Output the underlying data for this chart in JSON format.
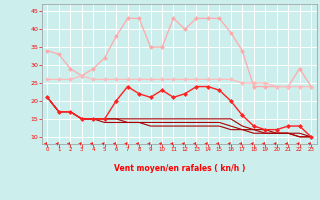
{
  "x": [
    0,
    1,
    2,
    3,
    4,
    5,
    6,
    7,
    8,
    9,
    10,
    11,
    12,
    13,
    14,
    15,
    16,
    17,
    18,
    19,
    20,
    21,
    22,
    23
  ],
  "line1": [
    34,
    33,
    29,
    27,
    29,
    32,
    38,
    43,
    43,
    35,
    35,
    43,
    40,
    43,
    43,
    43,
    39,
    34,
    24,
    24,
    24,
    24,
    29,
    24
  ],
  "line2": [
    26,
    26,
    26,
    27,
    26,
    26,
    26,
    26,
    26,
    26,
    26,
    26,
    26,
    26,
    26,
    26,
    26,
    25,
    25,
    25,
    24,
    24,
    24,
    24
  ],
  "line3": [
    21,
    17,
    17,
    15,
    15,
    15,
    20,
    24,
    22,
    21,
    23,
    21,
    22,
    24,
    24,
    23,
    20,
    16,
    13,
    12,
    12,
    13,
    13,
    10
  ],
  "line4": [
    21,
    17,
    17,
    15,
    15,
    15,
    15,
    15,
    15,
    15,
    15,
    15,
    15,
    15,
    15,
    15,
    15,
    13,
    12,
    12,
    11,
    11,
    11,
    10
  ],
  "line5": [
    21,
    17,
    17,
    15,
    15,
    15,
    15,
    14,
    14,
    14,
    14,
    14,
    14,
    14,
    14,
    14,
    13,
    12,
    12,
    11,
    11,
    11,
    10,
    10
  ],
  "line6": [
    21,
    17,
    17,
    15,
    15,
    14,
    14,
    14,
    14,
    13,
    13,
    13,
    13,
    13,
    13,
    13,
    12,
    12,
    11,
    11,
    11,
    11,
    10,
    10
  ],
  "bg_color": "#cceeed",
  "grid_color": "#ffffff",
  "line1_color": "#ffaaaa",
  "line2_color": "#ffbbbb",
  "line3_color": "#ff2222",
  "line4_color": "#aa0000",
  "line5_color": "#aa0000",
  "line6_color": "#aa0000",
  "xlabel": "Vent moyen/en rafales ( kn/h )",
  "ylim": [
    8,
    47
  ],
  "yticks": [
    10,
    15,
    20,
    25,
    30,
    35,
    40,
    45
  ],
  "xticks": [
    0,
    1,
    2,
    3,
    4,
    5,
    6,
    7,
    8,
    9,
    10,
    11,
    12,
    13,
    14,
    15,
    16,
    17,
    18,
    19,
    20,
    21,
    22,
    23
  ]
}
